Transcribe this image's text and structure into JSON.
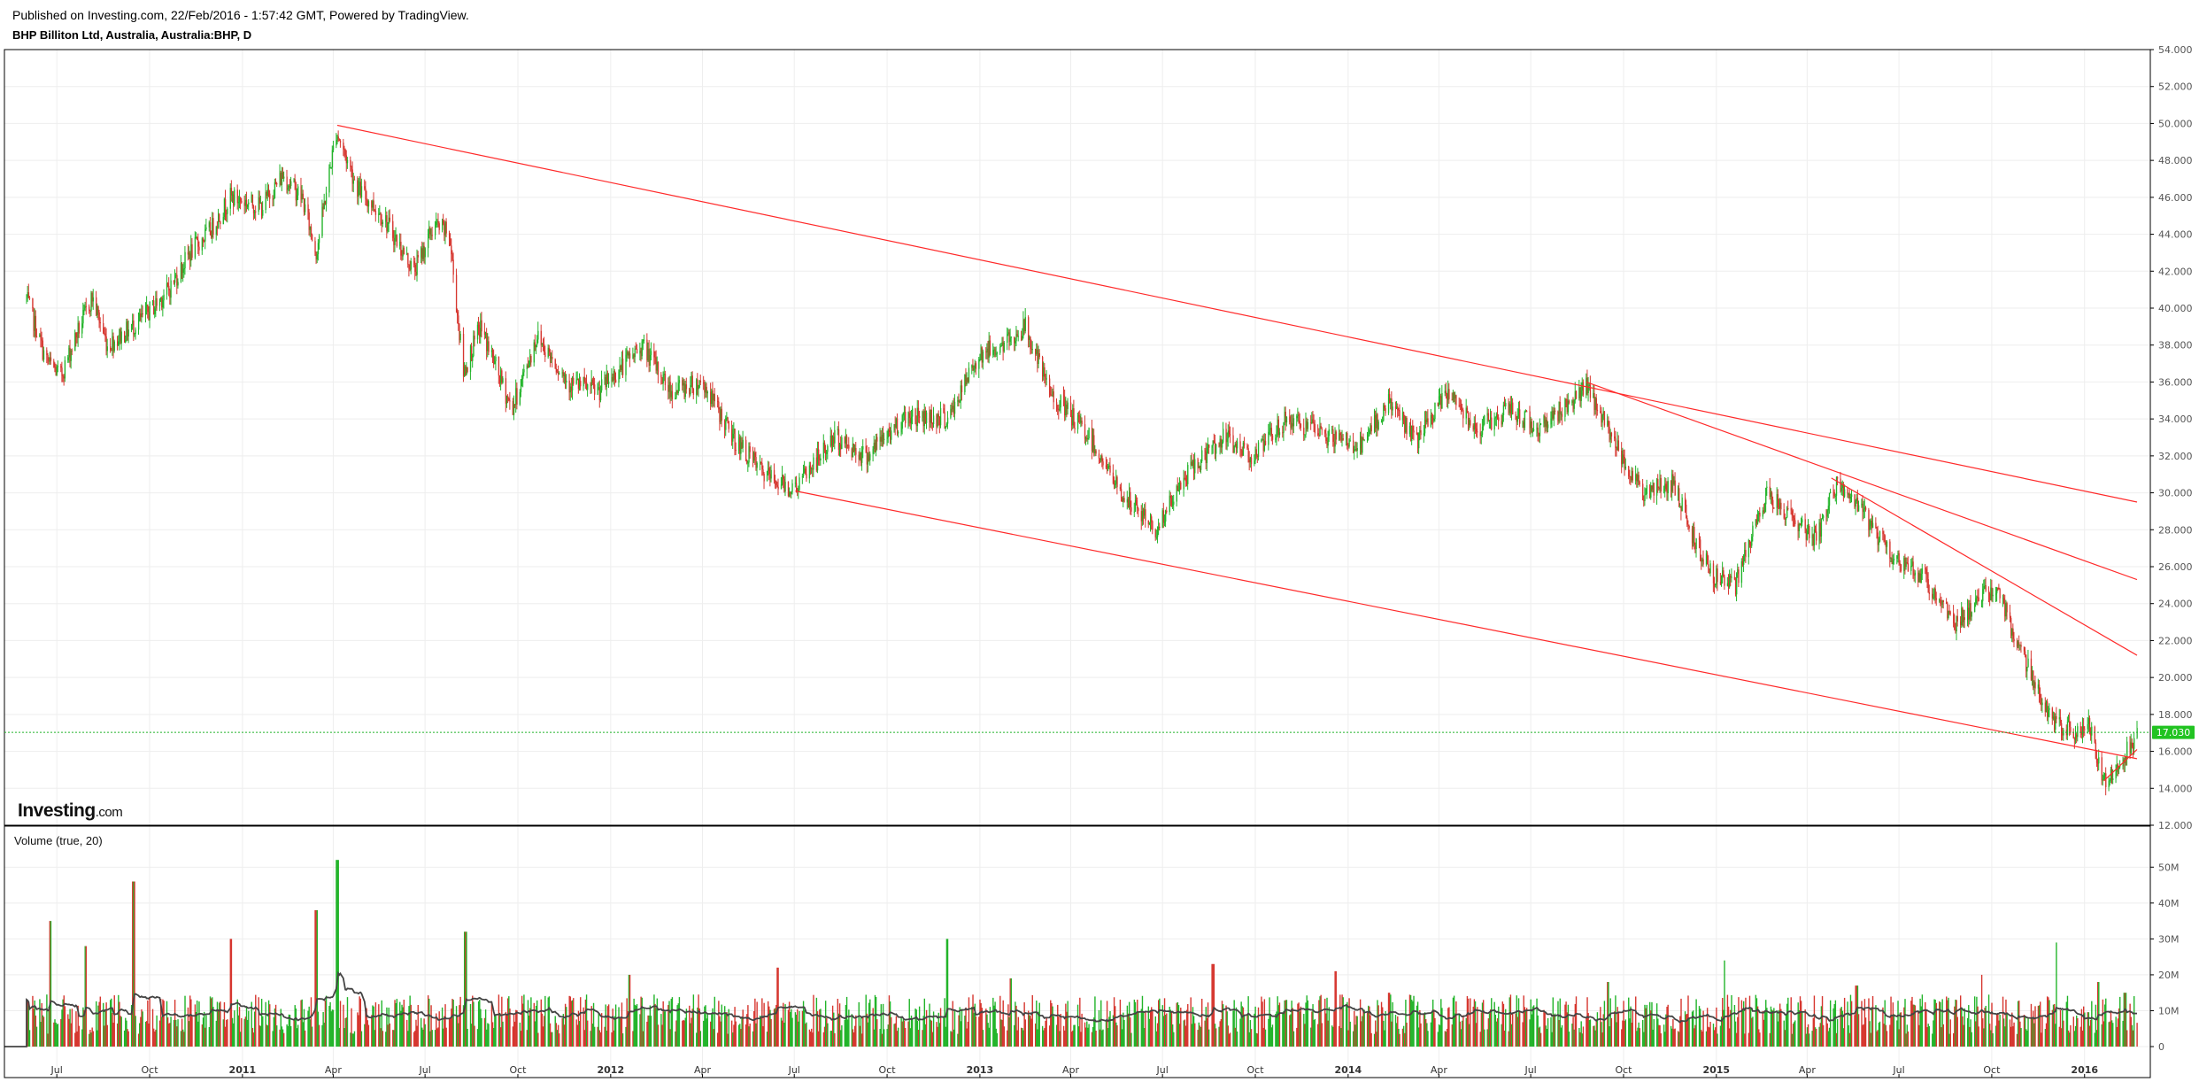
{
  "header": {
    "published": "Published on Investing.com, 22/Feb/2016 - 1:57:42 GMT, Powered by TradingView.",
    "symbol": "BHP Billiton Ltd, Australia, Australia:BHP, D"
  },
  "logo": {
    "text": "Investing",
    "suffix": ".com"
  },
  "volume_panel": {
    "label": "Volume (true, 20)"
  },
  "last_price": {
    "label": "17.030",
    "value": 17.03,
    "color": "#22c322"
  },
  "colors": {
    "up": "#22b42a",
    "down": "#d6362f",
    "trendline": "#ff2a2a",
    "ma": "#444444",
    "grid": "#eeeeee"
  },
  "chart_data": [
    {
      "type": "candlestick",
      "title": "BHP Billiton Ltd, Australia, Australia:BHP, D",
      "x_axis": {
        "start": "2010-06-01",
        "end": "2016-02-22",
        "ticks": [
          {
            "label": "Jul",
            "date": "2010-07-01",
            "bold": false
          },
          {
            "label": "Oct",
            "date": "2010-10-01",
            "bold": false
          },
          {
            "label": "2011",
            "date": "2011-01-01",
            "bold": true
          },
          {
            "label": "Apr",
            "date": "2011-04-01",
            "bold": false
          },
          {
            "label": "Jul",
            "date": "2011-07-01",
            "bold": false
          },
          {
            "label": "Oct",
            "date": "2011-10-01",
            "bold": false
          },
          {
            "label": "2012",
            "date": "2012-01-01",
            "bold": true
          },
          {
            "label": "Apr",
            "date": "2012-04-01",
            "bold": false
          },
          {
            "label": "Jul",
            "date": "2012-07-01",
            "bold": false
          },
          {
            "label": "Oct",
            "date": "2012-10-01",
            "bold": false
          },
          {
            "label": "2013",
            "date": "2013-01-01",
            "bold": true
          },
          {
            "label": "Apr",
            "date": "2013-04-01",
            "bold": false
          },
          {
            "label": "Jul",
            "date": "2013-07-01",
            "bold": false
          },
          {
            "label": "Oct",
            "date": "2013-10-01",
            "bold": false
          },
          {
            "label": "2014",
            "date": "2014-01-01",
            "bold": true
          },
          {
            "label": "Apr",
            "date": "2014-04-01",
            "bold": false
          },
          {
            "label": "Jul",
            "date": "2014-07-01",
            "bold": false
          },
          {
            "label": "Oct",
            "date": "2014-10-01",
            "bold": false
          },
          {
            "label": "2015",
            "date": "2015-01-01",
            "bold": true
          },
          {
            "label": "Apr",
            "date": "2015-04-01",
            "bold": false
          },
          {
            "label": "Jul",
            "date": "2015-07-01",
            "bold": false
          },
          {
            "label": "Oct",
            "date": "2015-10-01",
            "bold": false
          },
          {
            "label": "2016",
            "date": "2016-01-01",
            "bold": true
          }
        ]
      },
      "y_axis": {
        "range": [
          12,
          54
        ],
        "ticks": [
          "12.000",
          "14.000",
          "16.000",
          "18.000",
          "20.000",
          "22.000",
          "24.000",
          "26.000",
          "28.000",
          "30.000",
          "32.000",
          "34.000",
          "36.000",
          "38.000",
          "40.000",
          "42.000",
          "44.000",
          "46.000",
          "48.000",
          "50.000",
          "52.000",
          "54.000"
        ]
      },
      "price_path": [
        [
          "2010-06-01",
          40.5
        ],
        [
          "2010-06-20",
          37.2
        ],
        [
          "2010-07-05",
          36.3
        ],
        [
          "2010-07-20",
          38.5
        ],
        [
          "2010-08-05",
          40.6
        ],
        [
          "2010-08-20",
          38.0
        ],
        [
          "2010-09-05",
          38.6
        ],
        [
          "2010-09-25",
          39.5
        ],
        [
          "2010-10-20",
          41.0
        ],
        [
          "2010-11-10",
          43.0
        ],
        [
          "2010-11-30",
          44.2
        ],
        [
          "2010-12-20",
          46.0
        ],
        [
          "2011-01-20",
          45.5
        ],
        [
          "2011-02-10",
          47.2
        ],
        [
          "2011-03-01",
          46.0
        ],
        [
          "2011-03-15",
          43.0
        ],
        [
          "2011-04-04",
          49.6
        ],
        [
          "2011-04-25",
          46.5
        ],
        [
          "2011-05-20",
          45.0
        ],
        [
          "2011-06-20",
          42.0
        ],
        [
          "2011-07-10",
          44.5
        ],
        [
          "2011-07-25",
          44.0
        ],
        [
          "2011-08-08",
          36.5
        ],
        [
          "2011-08-25",
          39.0
        ],
        [
          "2011-09-25",
          34.5
        ],
        [
          "2011-10-20",
          38.5
        ],
        [
          "2011-11-20",
          36.0
        ],
        [
          "2011-12-20",
          35.5
        ],
        [
          "2012-02-01",
          38.0
        ],
        [
          "2012-03-01",
          35.5
        ],
        [
          "2012-04-01",
          36.0
        ],
        [
          "2012-05-01",
          33.0
        ],
        [
          "2012-06-01",
          31.0
        ],
        [
          "2012-07-01",
          30.2
        ],
        [
          "2012-08-10",
          33.0
        ],
        [
          "2012-09-10",
          32.0
        ],
        [
          "2012-10-20",
          34.2
        ],
        [
          "2012-12-01",
          34.0
        ],
        [
          "2012-12-31",
          37.5
        ],
        [
          "2013-01-25",
          38.0
        ],
        [
          "2013-02-15",
          39.0
        ],
        [
          "2013-03-10",
          35.5
        ],
        [
          "2013-04-20",
          33.0
        ],
        [
          "2013-05-20",
          30.0
        ],
        [
          "2013-06-25",
          28.0
        ],
        [
          "2013-07-25",
          31.0
        ],
        [
          "2013-08-30",
          33.0
        ],
        [
          "2013-09-30",
          32.0
        ],
        [
          "2013-11-01",
          34.0
        ],
        [
          "2013-12-15",
          33.0
        ],
        [
          "2014-01-15",
          32.5
        ],
        [
          "2014-02-10",
          35.0
        ],
        [
          "2014-03-10",
          32.8
        ],
        [
          "2014-04-10",
          35.5
        ],
        [
          "2014-05-10",
          33.5
        ],
        [
          "2014-06-10",
          34.5
        ],
        [
          "2014-07-10",
          33.5
        ],
        [
          "2014-08-10",
          35.0
        ],
        [
          "2014-08-25",
          35.7
        ],
        [
          "2014-09-20",
          33.0
        ],
        [
          "2014-10-20",
          30.0
        ],
        [
          "2014-11-20",
          30.5
        ],
        [
          "2014-12-10",
          27.5
        ],
        [
          "2014-12-30",
          25.5
        ],
        [
          "2015-01-20",
          25.0
        ],
        [
          "2015-02-20",
          30.0
        ],
        [
          "2015-03-20",
          28.5
        ],
        [
          "2015-04-10",
          27.5
        ],
        [
          "2015-04-30",
          30.5
        ],
        [
          "2015-05-25",
          29.0
        ],
        [
          "2015-06-25",
          26.5
        ],
        [
          "2015-07-25",
          25.5
        ],
        [
          "2015-08-25",
          23.0
        ],
        [
          "2015-09-15",
          24.0
        ],
        [
          "2015-10-05",
          25.0
        ],
        [
          "2015-10-25",
          22.0
        ],
        [
          "2015-11-15",
          19.5
        ],
        [
          "2015-12-01",
          17.5
        ],
        [
          "2015-12-20",
          17.0
        ],
        [
          "2016-01-05",
          17.5
        ],
        [
          "2016-01-20",
          14.3
        ],
        [
          "2016-02-05",
          15.5
        ],
        [
          "2016-02-22",
          17.0
        ]
      ],
      "trendlines": [
        {
          "from": [
            "2011-04-05",
            49.9
          ],
          "to": [
            "2016-02-22",
            29.5
          ]
        },
        {
          "from": [
            "2012-07-02",
            30.1
          ],
          "to": [
            "2016-02-22",
            15.6
          ]
        },
        {
          "from": [
            "2014-08-25",
            36.0
          ],
          "to": [
            "2016-02-22",
            25.3
          ]
        },
        {
          "from": [
            "2015-04-25",
            30.8
          ],
          "to": [
            "2016-02-22",
            21.2
          ]
        },
        {
          "from": [
            "2016-01-20",
            14.4
          ],
          "to": [
            "2016-02-22",
            16.1
          ]
        }
      ]
    },
    {
      "type": "bar",
      "title": "Volume (true, 20)",
      "y_axis": {
        "range": [
          0,
          56
        ],
        "unit": "M",
        "ticks": [
          "0",
          "10M",
          "20M",
          "30M",
          "40M",
          "50M"
        ]
      },
      "baseline_m": 10,
      "moving_average_period": 20,
      "spikes": [
        [
          "2010-06-25",
          35
        ],
        [
          "2010-09-15",
          46
        ],
        [
          "2010-07-30",
          28
        ],
        [
          "2010-12-20",
          30
        ],
        [
          "2011-03-15",
          38
        ],
        [
          "2011-04-05",
          52
        ],
        [
          "2011-08-10",
          32
        ],
        [
          "2012-01-20",
          20
        ],
        [
          "2012-06-15",
          22
        ],
        [
          "2012-11-30",
          30
        ],
        [
          "2013-02-01",
          19
        ],
        [
          "2013-08-20",
          23
        ],
        [
          "2013-12-20",
          21
        ],
        [
          "2014-02-10",
          15
        ],
        [
          "2014-09-15",
          18
        ],
        [
          "2015-01-10",
          24
        ],
        [
          "2015-05-20",
          17
        ],
        [
          "2015-09-20",
          20
        ],
        [
          "2015-12-05",
          29
        ],
        [
          "2016-01-15",
          18
        ],
        [
          "2016-02-10",
          15
        ]
      ]
    }
  ]
}
